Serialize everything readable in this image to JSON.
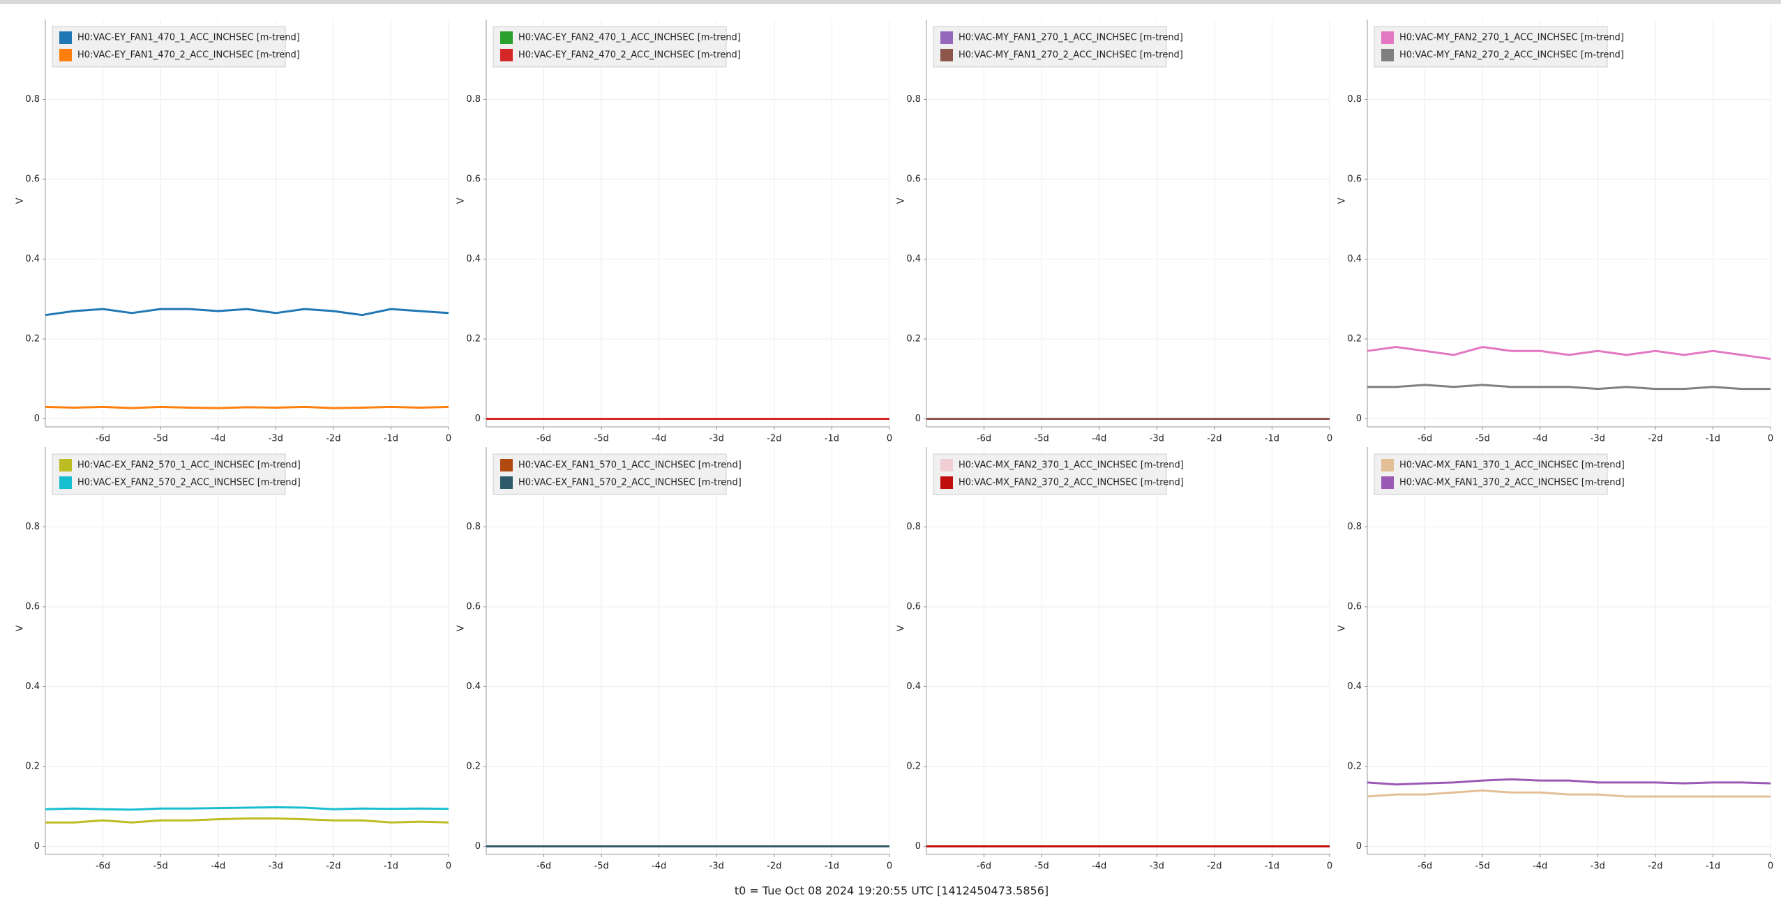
{
  "chart_data": [
    {
      "type": "line",
      "ylabel": "V",
      "legend": "upper left",
      "grid": true,
      "x": [
        -7,
        -6.5,
        -6,
        -5.5,
        -5,
        -4.5,
        -4,
        -3.5,
        -3,
        -2.5,
        -2,
        -1.5,
        -1,
        -0.5,
        0
      ],
      "xlim": [
        -7,
        0
      ],
      "ylim": [
        -0.02,
        1
      ],
      "xticks": [
        {
          "value": -6,
          "label": "-6d"
        },
        {
          "value": -5,
          "label": "-5d"
        },
        {
          "value": -4,
          "label": "-4d"
        },
        {
          "value": -3,
          "label": "-3d"
        },
        {
          "value": -2,
          "label": "-2d"
        },
        {
          "value": -1,
          "label": "-1d"
        },
        0
      ],
      "yticks": [
        0,
        0.2,
        0.4,
        0.6,
        0.8
      ],
      "series": [
        {
          "name": "H0:VAC-EY_FAN1_470_1_ACC_INCHSEC [m-trend]",
          "color": "#1f77b4",
          "values": [
            0.26,
            0.27,
            0.275,
            0.265,
            0.275,
            0.275,
            0.27,
            0.275,
            0.265,
            0.275,
            0.27,
            0.26,
            0.275,
            0.27,
            0.265
          ]
        },
        {
          "name": "H0:VAC-EY_FAN1_470_2_ACC_INCHSEC [m-trend]",
          "color": "#ff7f0e",
          "values": [
            0.03,
            0.028,
            0.03,
            0.027,
            0.03,
            0.028,
            0.027,
            0.029,
            0.028,
            0.03,
            0.027,
            0.028,
            0.03,
            0.028,
            0.03
          ]
        }
      ]
    },
    {
      "type": "line",
      "ylabel": "V",
      "legend": "upper left",
      "grid": true,
      "x": [
        -7,
        -6.5,
        -6,
        -5.5,
        -5,
        -4.5,
        -4,
        -3.5,
        -3,
        -2.5,
        -2,
        -1.5,
        -1,
        -0.5,
        0
      ],
      "xlim": [
        -7,
        0
      ],
      "ylim": [
        -0.02,
        1
      ],
      "xticks": [
        {
          "value": -6,
          "label": "-6d"
        },
        {
          "value": -5,
          "label": "-5d"
        },
        {
          "value": -4,
          "label": "-4d"
        },
        {
          "value": -3,
          "label": "-3d"
        },
        {
          "value": -2,
          "label": "-2d"
        },
        {
          "value": -1,
          "label": "-1d"
        },
        0
      ],
      "yticks": [
        0,
        0.2,
        0.4,
        0.6,
        0.8
      ],
      "series": [
        {
          "name": "H0:VAC-EY_FAN2_470_1_ACC_INCHSEC [m-trend]",
          "color": "#2ca02c",
          "values": [
            0,
            0,
            0,
            0,
            0,
            0,
            0,
            0,
            0,
            0,
            0,
            0,
            0,
            0,
            0
          ]
        },
        {
          "name": "H0:VAC-EY_FAN2_470_2_ACC_INCHSEC [m-trend]",
          "color": "#d62728",
          "values": [
            0,
            0,
            0,
            0,
            0,
            0,
            0,
            0,
            0,
            0,
            0,
            0,
            0,
            0,
            0
          ]
        }
      ]
    },
    {
      "type": "line",
      "ylabel": "V",
      "legend": "upper left",
      "grid": true,
      "x": [
        -7,
        -6.5,
        -6,
        -5.5,
        -5,
        -4.5,
        -4,
        -3.5,
        -3,
        -2.5,
        -2,
        -1.5,
        -1,
        -0.5,
        0
      ],
      "xlim": [
        -7,
        0
      ],
      "ylim": [
        -0.02,
        1
      ],
      "xticks": [
        {
          "value": -6,
          "label": "-6d"
        },
        {
          "value": -5,
          "label": "-5d"
        },
        {
          "value": -4,
          "label": "-4d"
        },
        {
          "value": -3,
          "label": "-3d"
        },
        {
          "value": -2,
          "label": "-2d"
        },
        {
          "value": -1,
          "label": "-1d"
        },
        0
      ],
      "yticks": [
        0,
        0.2,
        0.4,
        0.6,
        0.8
      ],
      "series": [
        {
          "name": "H0:VAC-MY_FAN1_270_1_ACC_INCHSEC [m-trend]",
          "color": "#9467bd",
          "values": [
            0,
            0,
            0,
            0,
            0,
            0,
            0,
            0,
            0,
            0,
            0,
            0,
            0,
            0,
            0
          ]
        },
        {
          "name": "H0:VAC-MY_FAN1_270_2_ACC_INCHSEC [m-trend]",
          "color": "#8c564b",
          "values": [
            0,
            0,
            0,
            0,
            0,
            0,
            0,
            0,
            0,
            0,
            0,
            0,
            0,
            0,
            0
          ]
        }
      ]
    },
    {
      "type": "line",
      "ylabel": "V",
      "legend": "upper left",
      "grid": true,
      "x": [
        -7,
        -6.5,
        -6,
        -5.5,
        -5,
        -4.5,
        -4,
        -3.5,
        -3,
        -2.5,
        -2,
        -1.5,
        -1,
        -0.5,
        0
      ],
      "xlim": [
        -7,
        0
      ],
      "ylim": [
        -0.02,
        1
      ],
      "xticks": [
        {
          "value": -6,
          "label": "-6d"
        },
        {
          "value": -5,
          "label": "-5d"
        },
        {
          "value": -4,
          "label": "-4d"
        },
        {
          "value": -3,
          "label": "-3d"
        },
        {
          "value": -2,
          "label": "-2d"
        },
        {
          "value": -1,
          "label": "-1d"
        },
        0
      ],
      "yticks": [
        0,
        0.2,
        0.4,
        0.6,
        0.8
      ],
      "series": [
        {
          "name": "H0:VAC-MY_FAN2_270_1_ACC_INCHSEC [m-trend]",
          "color": "#e377c2",
          "values": [
            0.17,
            0.18,
            0.17,
            0.16,
            0.18,
            0.17,
            0.17,
            0.16,
            0.17,
            0.16,
            0.17,
            0.16,
            0.17,
            0.16,
            0.15
          ]
        },
        {
          "name": "H0:VAC-MY_FAN2_270_2_ACC_INCHSEC [m-trend]",
          "color": "#7f7f7f",
          "values": [
            0.08,
            0.08,
            0.085,
            0.08,
            0.085,
            0.08,
            0.08,
            0.08,
            0.075,
            0.08,
            0.075,
            0.075,
            0.08,
            0.075,
            0.075
          ]
        }
      ]
    },
    {
      "type": "line",
      "ylabel": "V",
      "legend": "upper left",
      "grid": true,
      "x": [
        -7,
        -6.5,
        -6,
        -5.5,
        -5,
        -4.5,
        -4,
        -3.5,
        -3,
        -2.5,
        -2,
        -1.5,
        -1,
        -0.5,
        0
      ],
      "xlim": [
        -7,
        0
      ],
      "ylim": [
        -0.02,
        1
      ],
      "xticks": [
        {
          "value": -6,
          "label": "-6d"
        },
        {
          "value": -5,
          "label": "-5d"
        },
        {
          "value": -4,
          "label": "-4d"
        },
        {
          "value": -3,
          "label": "-3d"
        },
        {
          "value": -2,
          "label": "-2d"
        },
        {
          "value": -1,
          "label": "-1d"
        },
        0
      ],
      "yticks": [
        0,
        0.2,
        0.4,
        0.6,
        0.8
      ],
      "series": [
        {
          "name": "H0:VAC-EX_FAN2_570_1_ACC_INCHSEC [m-trend]",
          "color": "#bcbd22",
          "values": [
            0.06,
            0.06,
            0.065,
            0.06,
            0.065,
            0.065,
            0.068,
            0.07,
            0.07,
            0.068,
            0.065,
            0.065,
            0.06,
            0.062,
            0.06
          ]
        },
        {
          "name": "H0:VAC-EX_FAN2_570_2_ACC_INCHSEC [m-trend]",
          "color": "#17becf",
          "values": [
            0.093,
            0.095,
            0.093,
            0.092,
            0.095,
            0.095,
            0.096,
            0.097,
            0.098,
            0.097,
            0.093,
            0.095,
            0.094,
            0.095,
            0.094
          ]
        }
      ]
    },
    {
      "type": "line",
      "ylabel": "V",
      "legend": "upper left",
      "grid": true,
      "x": [
        -7,
        -6.5,
        -6,
        -5.5,
        -5,
        -4.5,
        -4,
        -3.5,
        -3,
        -2.5,
        -2,
        -1.5,
        -1,
        -0.5,
        0
      ],
      "xlim": [
        -7,
        0
      ],
      "ylim": [
        -0.02,
        1
      ],
      "xticks": [
        {
          "value": -6,
          "label": "-6d"
        },
        {
          "value": -5,
          "label": "-5d"
        },
        {
          "value": -4,
          "label": "-4d"
        },
        {
          "value": -3,
          "label": "-3d"
        },
        {
          "value": -2,
          "label": "-2d"
        },
        {
          "value": -1,
          "label": "-1d"
        },
        0
      ],
      "yticks": [
        0,
        0.2,
        0.4,
        0.6,
        0.8
      ],
      "series": [
        {
          "name": "H0:VAC-EX_FAN1_570_1_ACC_INCHSEC [m-trend]",
          "color": "#b04a0f",
          "values": [
            0,
            0,
            0,
            0,
            0,
            0,
            0,
            0,
            0,
            0,
            0,
            0,
            0,
            0,
            0
          ]
        },
        {
          "name": "H0:VAC-EX_FAN1_570_2_ACC_INCHSEC [m-trend]",
          "color": "#2f5a6a",
          "values": [
            0,
            0,
            0,
            0,
            0,
            0,
            0,
            0,
            0,
            0,
            0,
            0,
            0,
            0,
            0
          ]
        }
      ]
    },
    {
      "type": "line",
      "ylabel": "V",
      "legend": "upper left",
      "grid": true,
      "x": [
        -7,
        -6.5,
        -6,
        -5.5,
        -5,
        -4.5,
        -4,
        -3.5,
        -3,
        -2.5,
        -2,
        -1.5,
        -1,
        -0.5,
        0
      ],
      "xlim": [
        -7,
        0
      ],
      "ylim": [
        -0.02,
        1
      ],
      "xticks": [
        {
          "value": -6,
          "label": "-6d"
        },
        {
          "value": -5,
          "label": "-5d"
        },
        {
          "value": -4,
          "label": "-4d"
        },
        {
          "value": -3,
          "label": "-3d"
        },
        {
          "value": -2,
          "label": "-2d"
        },
        {
          "value": -1,
          "label": "-1d"
        },
        0
      ],
      "yticks": [
        0,
        0.2,
        0.4,
        0.6,
        0.8
      ],
      "series": [
        {
          "name": "H0:VAC-MX_FAN2_370_1_ACC_INCHSEC [m-trend]",
          "color": "#f0cfd4",
          "values": [
            0,
            0,
            0,
            0,
            0,
            0,
            0,
            0,
            0,
            0,
            0,
            0,
            0,
            0,
            0
          ]
        },
        {
          "name": "H0:VAC-MX_FAN2_370_2_ACC_INCHSEC [m-trend]",
          "color": "#c00d0d",
          "values": [
            0,
            0,
            0,
            0,
            0,
            0,
            0,
            0,
            0,
            0,
            0,
            0,
            0,
            0,
            0
          ]
        }
      ]
    },
    {
      "type": "line",
      "ylabel": "V",
      "legend": "upper left",
      "grid": true,
      "x": [
        -7,
        -6.5,
        -6,
        -5.5,
        -5,
        -4.5,
        -4,
        -3.5,
        -3,
        -2.5,
        -2,
        -1.5,
        -1,
        -0.5,
        0
      ],
      "xlim": [
        -7,
        0
      ],
      "ylim": [
        -0.02,
        1
      ],
      "xticks": [
        {
          "value": -6,
          "label": "-6d"
        },
        {
          "value": -5,
          "label": "-5d"
        },
        {
          "value": -4,
          "label": "-4d"
        },
        {
          "value": -3,
          "label": "-3d"
        },
        {
          "value": -2,
          "label": "-2d"
        },
        {
          "value": -1,
          "label": "-1d"
        },
        0
      ],
      "yticks": [
        0,
        0.2,
        0.4,
        0.6,
        0.8
      ],
      "series": [
        {
          "name": "H0:VAC-MX_FAN1_370_1_ACC_INCHSEC [m-trend]",
          "color": "#e3bf95",
          "values": [
            0.125,
            0.13,
            0.13,
            0.135,
            0.14,
            0.135,
            0.135,
            0.13,
            0.13,
            0.125,
            0.125,
            0.125,
            0.125,
            0.125,
            0.125
          ]
        },
        {
          "name": "H0:VAC-MX_FAN1_370_2_ACC_INCHSEC [m-trend]",
          "color": "#9b59b6",
          "values": [
            0.16,
            0.155,
            0.158,
            0.16,
            0.165,
            0.168,
            0.165,
            0.165,
            0.16,
            0.16,
            0.16,
            0.158,
            0.16,
            0.16,
            0.158
          ]
        }
      ]
    }
  ],
  "footer": "t0 = Tue Oct 08 2024 19:20:55 UTC [1412450473.5856]"
}
